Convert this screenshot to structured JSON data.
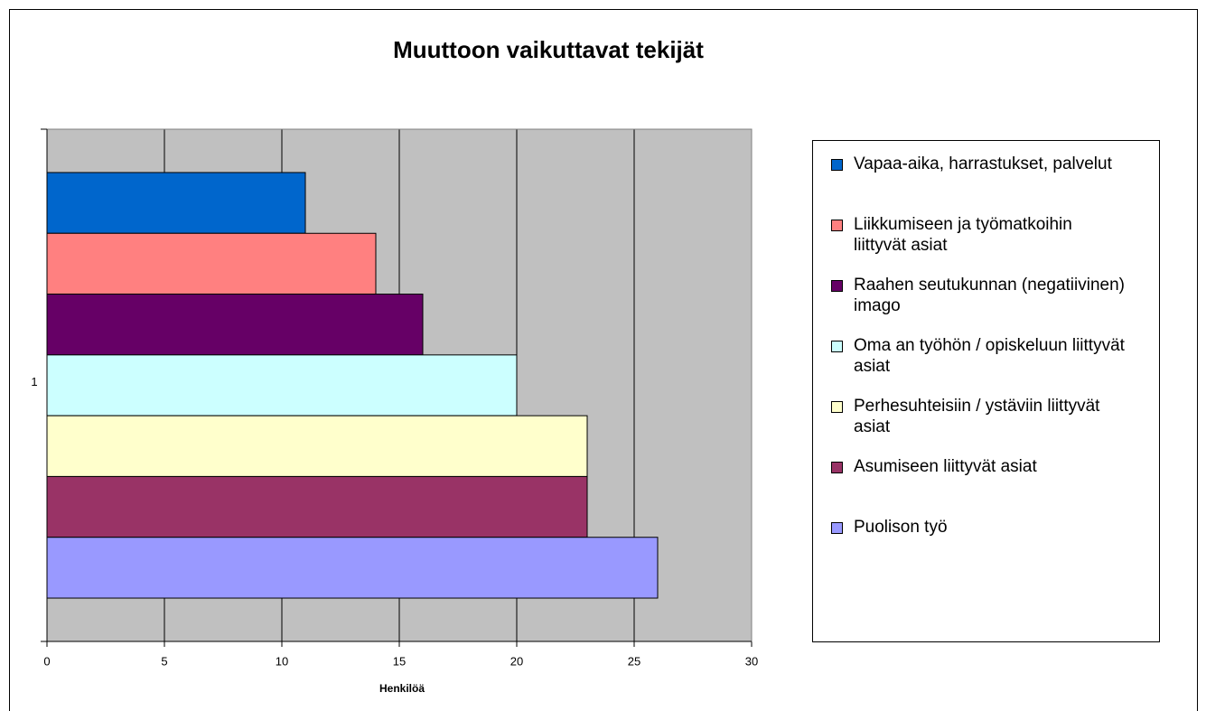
{
  "chart_data": {
    "type": "bar",
    "orientation": "horizontal",
    "title": "Muuttoon vaikuttavat tekijät",
    "x_label": "Henkilöä",
    "categories": [
      "1"
    ],
    "series": [
      {
        "name": "Vapaa-aika, harrastukset, palvelut",
        "color": "#0066cc",
        "values": [
          11
        ]
      },
      {
        "name": "Liikkumiseen ja työmatkoihin liittyvät asiat",
        "color": "#ff8080",
        "values": [
          14
        ]
      },
      {
        "name": "Raahen seutukunnan (negatiivinen) imago",
        "color": "#660066",
        "values": [
          16
        ]
      },
      {
        "name": "Oma an työhön / opiskeluun liittyvät asiat",
        "color": "#ccffff",
        "values": [
          20
        ]
      },
      {
        "name": "Perhesuhteisiin / ystäviin liittyvät asiat",
        "color": "#ffffcc",
        "values": [
          23
        ]
      },
      {
        "name": "Asumiseen liittyvät asiat",
        "color": "#993366",
        "values": [
          23
        ]
      },
      {
        "name": "Puolison työ",
        "color": "#9999ff",
        "values": [
          26
        ]
      }
    ],
    "xlim": [
      0,
      30
    ],
    "xticks": [
      0,
      5,
      10,
      15,
      20,
      25,
      30
    ],
    "grid": true,
    "legend": "right"
  }
}
